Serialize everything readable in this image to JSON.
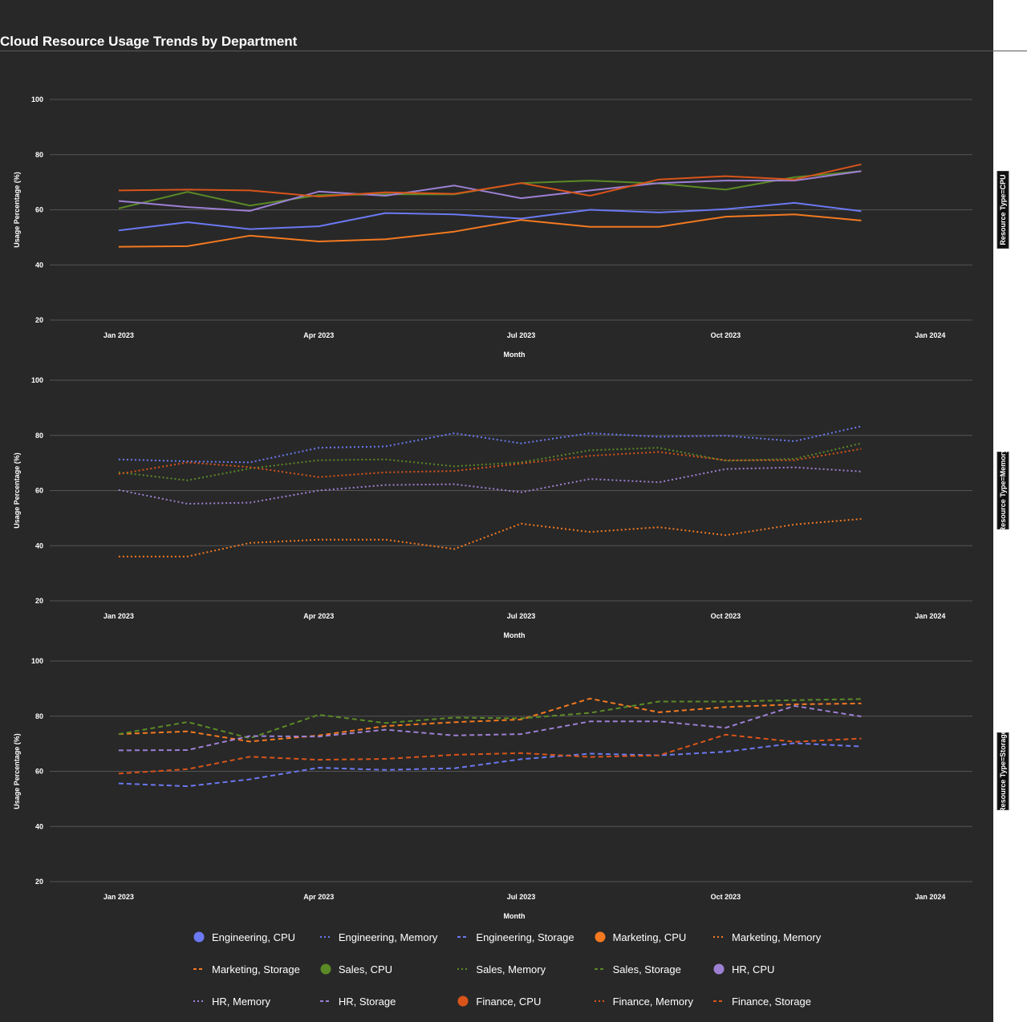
{
  "page": {
    "title": "Cloud Resource Usage Trends by Department"
  },
  "chart_data": {
    "type": "line",
    "title": "Cloud Resource Usage Trends by Department",
    "xlabel": "Month",
    "ylabel": "Usage Percentage (%)",
    "xlim": [
      "2022-12-01",
      "2024-01-20"
    ],
    "ylim": [
      20,
      100
    ],
    "x_ticks": [
      "Jan 2023",
      "Apr 2023",
      "Jul 2023",
      "Oct 2023",
      "Jan 2024"
    ],
    "y_ticks": [
      20,
      40,
      60,
      80,
      100
    ],
    "grid": true,
    "legend_placement": "bottom",
    "facet_by": "Resource Type",
    "x": [
      "2023-01-01",
      "2023-02-01",
      "2023-03-01",
      "2023-04-01",
      "2023-05-01",
      "2023-06-01",
      "2023-07-01",
      "2023-08-01",
      "2023-09-01",
      "2023-10-01",
      "2023-11-01",
      "2023-12-01"
    ],
    "colors": {
      "Engineering": "#6b79f2",
      "Marketing": "#f47920",
      "Sales": "#5b8a26",
      "HR": "#9d80d4",
      "Finance": "#d9541a"
    },
    "facets": [
      {
        "label": "Resource Type=CPU",
        "dash": "solid",
        "series": [
          {
            "name": "Engineering, CPU",
            "department": "Engineering",
            "values": [
              52.5,
              55.5,
              53,
              54,
              58.8,
              58.3,
              56.8,
              60,
              59,
              60.2,
              62.5,
              59.5
            ]
          },
          {
            "name": "Marketing, CPU",
            "department": "Marketing",
            "values": [
              46.6,
              46.8,
              50.6,
              48.5,
              49.3,
              52.1,
              56.3,
              53.8,
              53.8,
              57.5,
              58.3,
              56.1
            ]
          },
          {
            "name": "Sales, CPU",
            "department": "Sales",
            "values": [
              60.5,
              66.5,
              61.5,
              65.3,
              65.6,
              65.6,
              69.7,
              70.6,
              69.5,
              67.3,
              71.8,
              74
            ]
          },
          {
            "name": "HR, CPU",
            "department": "HR",
            "values": [
              63.2,
              61,
              59.6,
              66.6,
              65.1,
              68.8,
              64.2,
              67,
              69.7,
              70.6,
              70.6,
              74
            ]
          },
          {
            "name": "Finance, CPU",
            "department": "Finance",
            "values": [
              67,
              67.3,
              67,
              64.8,
              66.3,
              65.8,
              69.7,
              65.1,
              71,
              72.2,
              71,
              76.5
            ]
          }
        ]
      },
      {
        "label": "Resource Type=Memory",
        "dash": "dot",
        "series": [
          {
            "name": "Engineering, Memory",
            "department": "Engineering",
            "values": [
              71.3,
              70.6,
              70.2,
              75.5,
              76,
              80.8,
              77.1,
              80.8,
              79.5,
              79.9,
              77.9,
              83.3
            ]
          },
          {
            "name": "Marketing, Memory",
            "department": "Marketing",
            "values": [
              36.1,
              36.1,
              41,
              42.2,
              42.2,
              38.8,
              48,
              45,
              46.7,
              43.8,
              47.7,
              49.7
            ]
          },
          {
            "name": "Sales, Memory",
            "department": "Sales",
            "values": [
              66.6,
              63.7,
              68,
              71,
              71.3,
              68.8,
              70.2,
              74.6,
              75.5,
              70.8,
              71.5,
              77.1
            ]
          },
          {
            "name": "HR, Memory",
            "department": "HR",
            "values": [
              60.2,
              55.2,
              55.6,
              60,
              62,
              62.3,
              59.4,
              64.2,
              63,
              67.8,
              68.4,
              66.9
            ]
          },
          {
            "name": "Finance, Memory",
            "department": "Finance",
            "values": [
              66,
              70.2,
              68.5,
              64.9,
              66.6,
              67.1,
              69.8,
              72.6,
              74,
              71,
              71,
              75.1
            ]
          }
        ]
      },
      {
        "label": "Resource Type=Storage",
        "dash": "dash",
        "series": [
          {
            "name": "Engineering, Storage",
            "department": "Engineering",
            "values": [
              55.6,
              54.6,
              57.1,
              61.3,
              60.5,
              61.1,
              64.4,
              66.4,
              65.8,
              67.1,
              70.2,
              69
            ]
          },
          {
            "name": "Marketing, Storage",
            "department": "Marketing",
            "values": [
              73.5,
              74.5,
              70.8,
              73,
              76.4,
              77.8,
              78.8,
              86.4,
              81.4,
              83.3,
              84.3,
              84.6
            ]
          },
          {
            "name": "Sales, Storage",
            "department": "Sales",
            "values": [
              73.5,
              77.9,
              72,
              80.5,
              77.5,
              79.5,
              79.2,
              81.2,
              85.3,
              85.3,
              85.8,
              86.2
            ]
          },
          {
            "name": "HR, Storage",
            "department": "HR",
            "values": [
              67.6,
              67.7,
              72.8,
              72.6,
              75.1,
              73,
              73.5,
              78.1,
              78.1,
              75.8,
              83.7,
              79.9
            ]
          },
          {
            "name": "Finance, Storage",
            "department": "Finance",
            "values": [
              59.2,
              60.8,
              65.3,
              64.2,
              64.5,
              66,
              66.6,
              65.2,
              65.8,
              73.3,
              70.7,
              71.9
            ]
          }
        ]
      }
    ],
    "legend": [
      {
        "label": "Engineering, CPU",
        "department": "Engineering",
        "marker": "circle"
      },
      {
        "label": "Engineering, Memory",
        "department": "Engineering",
        "marker": "dot"
      },
      {
        "label": "Engineering, Storage",
        "department": "Engineering",
        "marker": "dash"
      },
      {
        "label": "Marketing, CPU",
        "department": "Marketing",
        "marker": "circle"
      },
      {
        "label": "Marketing, Memory",
        "department": "Marketing",
        "marker": "dot"
      },
      {
        "label": "Marketing, Storage",
        "department": "Marketing",
        "marker": "dash"
      },
      {
        "label": "Sales, CPU",
        "department": "Sales",
        "marker": "circle"
      },
      {
        "label": "Sales, Memory",
        "department": "Sales",
        "marker": "dot"
      },
      {
        "label": "Sales, Storage",
        "department": "Sales",
        "marker": "dash"
      },
      {
        "label": "HR, CPU",
        "department": "HR",
        "marker": "circle"
      },
      {
        "label": "HR, Memory",
        "department": "HR",
        "marker": "dot"
      },
      {
        "label": "HR, Storage",
        "department": "HR",
        "marker": "dash"
      },
      {
        "label": "Finance, CPU",
        "department": "Finance",
        "marker": "circle"
      },
      {
        "label": "Finance, Memory",
        "department": "Finance",
        "marker": "dot"
      },
      {
        "label": "Finance, Storage",
        "department": "Finance",
        "marker": "dash"
      }
    ]
  }
}
